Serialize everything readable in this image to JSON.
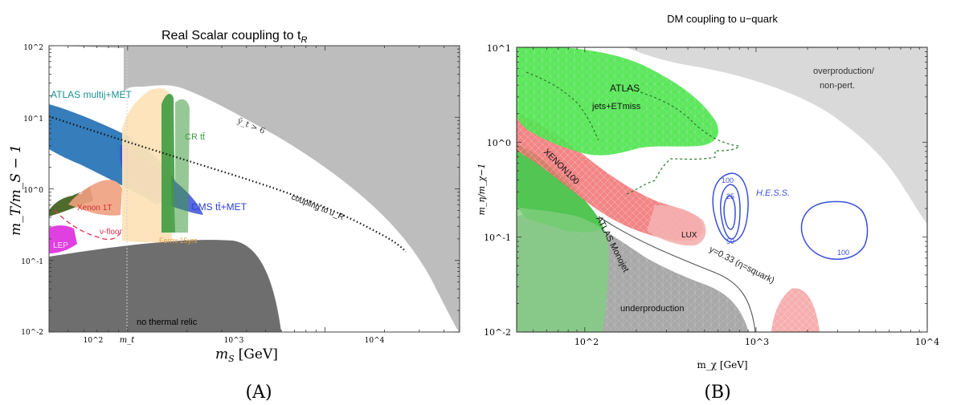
{
  "chart_data": [
    {
      "type": "area",
      "panel_label": "(A)",
      "title": "Real Scalar coupling to t",
      "title_sub": "R",
      "xlabel": "m",
      "xlabel_sub": "S",
      "xlabel_unit": "[GeV]",
      "ylabel": "m_T/m_S − 1",
      "xscale": "log",
      "yscale": "log",
      "xlim": [
        40,
        4800
      ],
      "ylim": [
        0.01,
        100
      ],
      "x_ticks": [
        "10^2",
        "10^3",
        "10^4"
      ],
      "x_marker": "m_t",
      "x_marker_value": 173,
      "y_ticks": [
        "10^-2",
        "10^-1",
        "10^0",
        "10^1",
        "10^2"
      ],
      "regions": [
        {
          "name": "ATLAS multij+MET",
          "color": "#1f6fb4"
        },
        {
          "name": "CMS tt̄+MET",
          "color": "#3a4fd8"
        },
        {
          "name": "CR tt̄",
          "color": "#3f9a3f"
        },
        {
          "name": "Fermi 15yrs",
          "color": "#fde3b8"
        },
        {
          "name": "Fermi gg",
          "color": "#4f6b2c"
        },
        {
          "name": "Xenon 1T",
          "color": "#f0a080"
        },
        {
          "name": "LEP",
          "color": "#e040e0"
        },
        {
          "name": "ν-floor",
          "color": "#e03050"
        },
        {
          "name": "no thermal relic",
          "color": "#707070"
        }
      ],
      "annotations": [
        "ỹ_t > 6",
        "coupling to u_R",
        "Fermi gg",
        "Xenon 1T",
        "ν-floor",
        "LEP",
        "Fermi 15yrs",
        "CR tt̄",
        "CMS tt̄+MET",
        "ATLAS multij+MET",
        "no thermal relic"
      ],
      "curves": [
        {
          "name": "coupling to u_R",
          "x": [
            40,
            100,
            300,
            1000,
            3000
          ],
          "y": [
            10,
            5.5,
            2.3,
            0.8,
            0.25
          ]
        }
      ]
    },
    {
      "type": "area",
      "panel_label": "(B)",
      "title": "DM coupling to u−quark",
      "xlabel": "m_χ [GeV]",
      "ylabel": "m_η/m_χ−1",
      "xscale": "log",
      "yscale": "log",
      "xlim": [
        40,
        10000
      ],
      "ylim": [
        0.01,
        10
      ],
      "x_ticks": [
        "10^2",
        "10^3",
        "10^4"
      ],
      "y_ticks": [
        "10^-2",
        "10^-1",
        "10^0",
        "10^1"
      ],
      "regions": [
        {
          "name": "ATLAS jets+ETmiss",
          "color": "#4ee44e"
        },
        {
          "name": "XENON100",
          "color": "#f08080"
        },
        {
          "name": "LUX",
          "color": "#f5b0b0"
        },
        {
          "name": "ATLAS Monojet",
          "color": "#3fbf3f"
        },
        {
          "name": "overproduction/non-pert.",
          "color": "#d9d9d9"
        },
        {
          "name": "underproduction",
          "color": "#a8a8a8"
        }
      ],
      "annotations": [
        "ATLAS",
        "jets+ETmiss",
        "XENON100",
        "LUX",
        "ATLAS Monojet",
        "y=0.33 (η=squark)",
        "H.E.S.S.",
        "overproduction/",
        "non-pert.",
        "underproduction"
      ],
      "contours": {
        "name": "H.E.S.S.",
        "levels": [
          "100",
          "25",
          "50",
          "100"
        ],
        "color": "#3a4fd8"
      }
    }
  ]
}
